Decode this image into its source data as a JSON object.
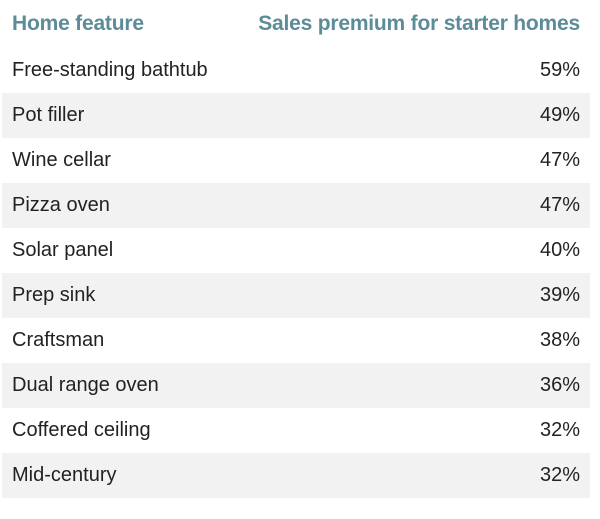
{
  "chart_data": {
    "type": "table",
    "columns": [
      "Home feature",
      "Sales premium for starter homes"
    ],
    "rows": [
      [
        "Free-standing bathtub",
        "59%"
      ],
      [
        "Pot filler",
        "49%"
      ],
      [
        "Wine cellar",
        "47%"
      ],
      [
        "Pizza oven",
        "47%"
      ],
      [
        "Solar panel",
        "40%"
      ],
      [
        "Prep sink",
        "39%"
      ],
      [
        "Craftsman",
        "38%"
      ],
      [
        "Dual range oven",
        "36%"
      ],
      [
        "Coffered ceiling",
        "32%"
      ],
      [
        "Mid-century",
        "32%"
      ]
    ]
  },
  "colors": {
    "header_text": "#5b8c97",
    "body_text": "#222222",
    "row_shade": "#f2f2f2",
    "background": "#ffffff"
  }
}
